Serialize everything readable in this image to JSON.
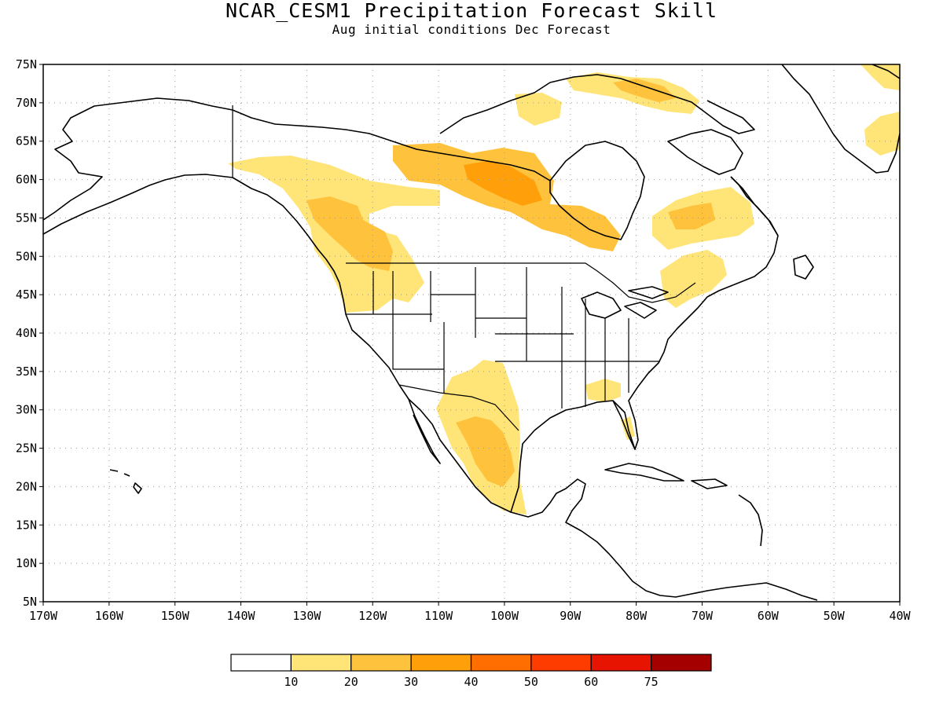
{
  "title": "NCAR_CESM1 Precipitation Forecast Skill",
  "subtitle": "Aug initial conditions  Dec Forecast",
  "map": {
    "lon_min": -170,
    "lon_max": -40,
    "lat_min": 5,
    "lat_max": 75,
    "lat_ticks": [
      "75N",
      "70N",
      "65N",
      "60N",
      "55N",
      "50N",
      "45N",
      "40N",
      "35N",
      "30N",
      "25N",
      "20N",
      "15N",
      "10N",
      "5N"
    ],
    "lon_ticks": [
      "170W",
      "160W",
      "150W",
      "140W",
      "130W",
      "120W",
      "110W",
      "100W",
      "90W",
      "80W",
      "70W",
      "60W",
      "50W",
      "40W"
    ],
    "grid": "dotted",
    "features": [
      "north-america-coastline",
      "us-state-borders",
      "greenland",
      "caribbean-islands",
      "hawaii"
    ]
  },
  "colorbar": {
    "colors": [
      "#ffffff",
      "#ffe478",
      "#ffc23c",
      "#ffa00a",
      "#ff6e00",
      "#ff3c00",
      "#e61400",
      "#a50000"
    ],
    "labels": [
      "10",
      "20",
      "30",
      "40",
      "50",
      "60",
      "75"
    ]
  },
  "skill_regions": [
    {
      "name": "pacific-northwest-canada",
      "level": 1
    },
    {
      "name": "british-columbia-core",
      "level": 2
    },
    {
      "name": "hudson-bay-west",
      "level": 2
    },
    {
      "name": "hudson-bay-core",
      "level": 3
    },
    {
      "name": "hudson-bay-southwest",
      "level": 1
    },
    {
      "name": "labrador",
      "level": 1
    },
    {
      "name": "quebec-east",
      "level": 2
    },
    {
      "name": "baffin-island",
      "level": 1
    },
    {
      "name": "baffin-core",
      "level": 2
    },
    {
      "name": "greenland-east",
      "level": 1
    },
    {
      "name": "northern-mexico",
      "level": 1
    },
    {
      "name": "mexico-core",
      "level": 2
    },
    {
      "name": "gulf-coast",
      "level": 1
    },
    {
      "name": "northeast-us",
      "level": 1
    },
    {
      "name": "florida",
      "level": 1
    }
  ]
}
